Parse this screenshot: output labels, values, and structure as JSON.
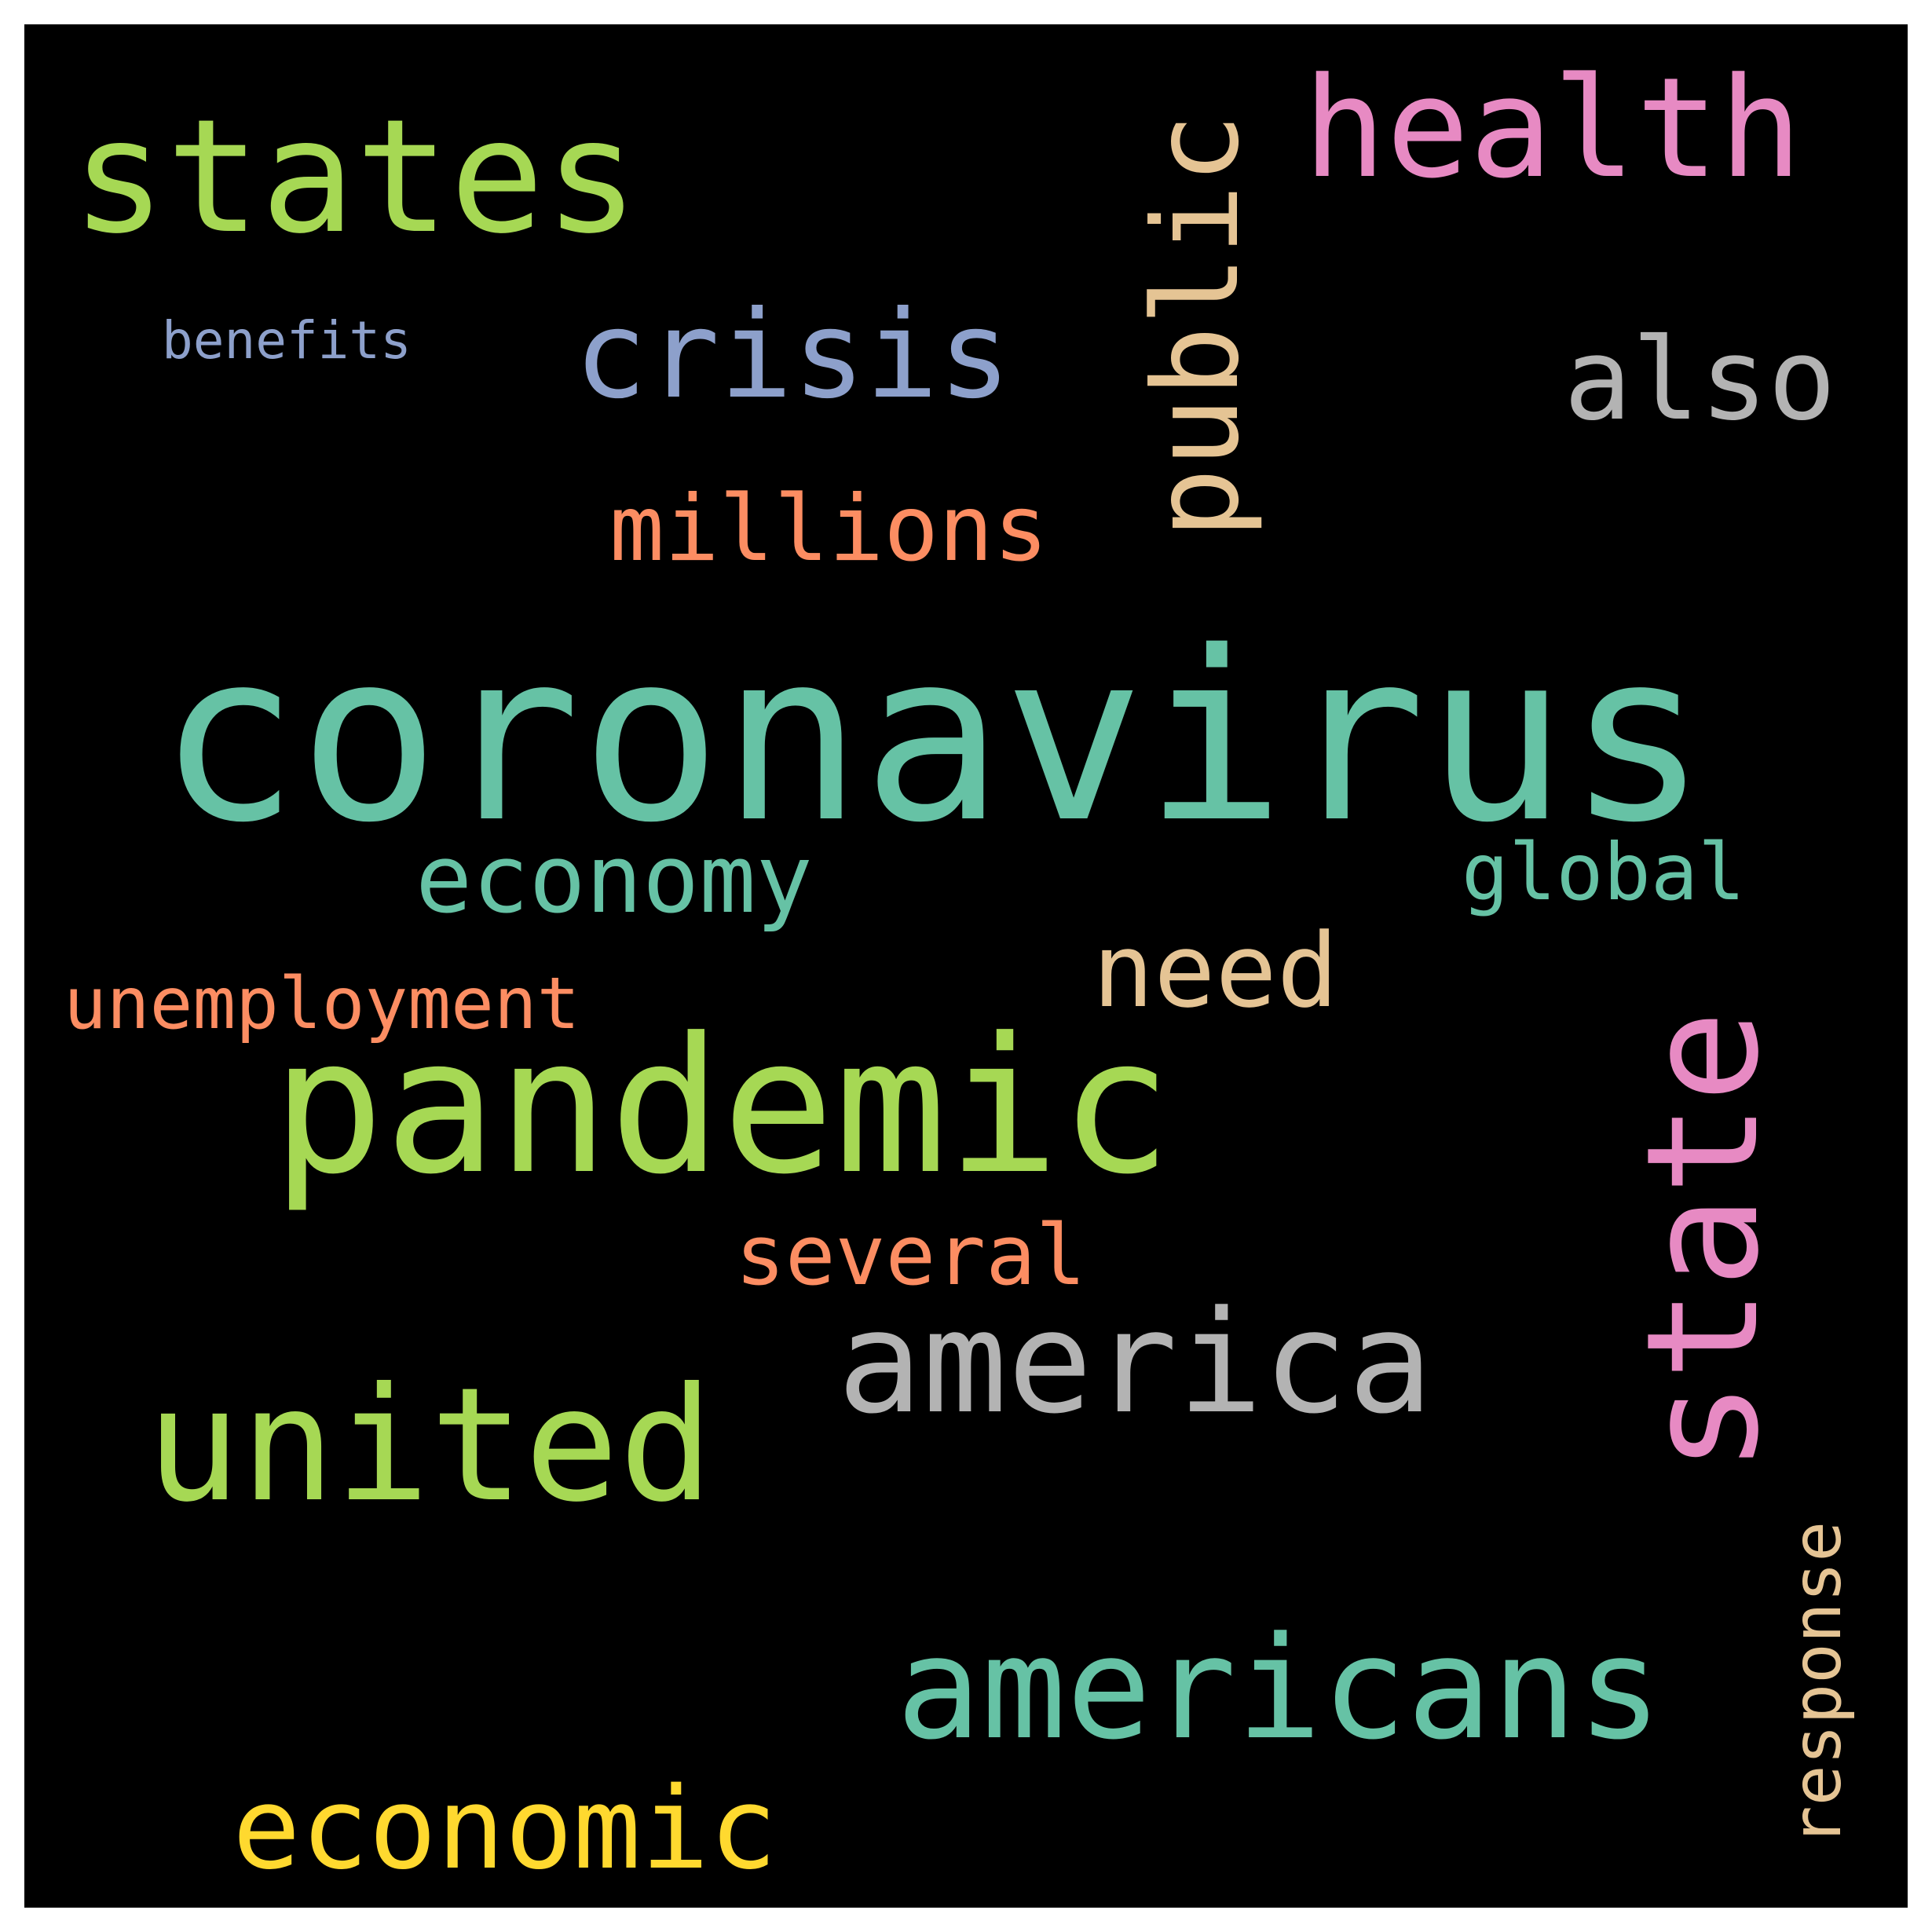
{
  "words": {
    "coronavirus": "coronavirus",
    "pandemic": "pandemic",
    "states": "states",
    "health": "health",
    "united": "united",
    "america": "america",
    "americans": "americans",
    "crisis": "crisis",
    "also": "also",
    "economy": "economy",
    "economic": "economic",
    "need": "need",
    "millions": "millions",
    "global": "global",
    "several": "several",
    "unemployment": "unemployment",
    "benefits": "benefits",
    "public": "public",
    "state": "state",
    "response": "response"
  },
  "colors": {
    "background": "#000000",
    "frame": "#ffffff",
    "teal": "#66c2a5",
    "green": "#a6d854",
    "pink": "#e78ac3",
    "blue": "#8da0cb",
    "gray": "#b3b3b3",
    "tan": "#e5c494",
    "orange": "#fc8d62",
    "yellow": "#ffd92f"
  }
}
